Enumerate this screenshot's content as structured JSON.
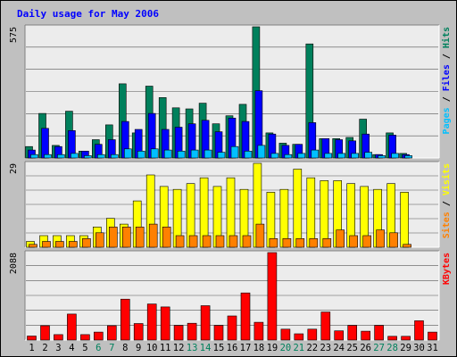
{
  "chart_data": {
    "type": "bar",
    "title": "Daily usage for May 2006",
    "x_labels": [
      "1",
      "2",
      "3",
      "4",
      "5",
      "6",
      "7",
      "8",
      "9",
      "10",
      "11",
      "12",
      "13",
      "14",
      "15",
      "16",
      "17",
      "18",
      "19",
      "20",
      "21",
      "22",
      "23",
      "24",
      "25",
      "26",
      "27",
      "28",
      "29",
      "30",
      "31"
    ],
    "weekend_days": [
      6,
      7,
      13,
      14,
      20,
      21,
      27,
      28
    ],
    "colors": {
      "background": "#c0c0c0",
      "plot": "#ececec",
      "grid": "#555555",
      "title": "#0000ff",
      "hits": "#00805c",
      "files": "#0000ff",
      "pages": "#00c0ff",
      "visits": "#ffff00",
      "sites": "#ff8000",
      "kbytes": "#ff0000",
      "weekend_label": "#00805c",
      "weekday_label": "#000000"
    },
    "panels": [
      {
        "name": "hits-files-pages",
        "max_label": "575",
        "ymax": 575,
        "right_labels": [
          {
            "text": "Pages",
            "color": "#00c0ff"
          },
          {
            "text": " / ",
            "color": "#000000"
          },
          {
            "text": "Files",
            "color": "#0000ff"
          },
          {
            "text": " / ",
            "color": "#000000"
          },
          {
            "text": "Hits",
            "color": "#00805c"
          }
        ],
        "series": [
          {
            "name": "Hits",
            "color": "#00805c",
            "values": [
              50,
              195,
              55,
              205,
              30,
              80,
              145,
              325,
              110,
              315,
              265,
              220,
              215,
              240,
              150,
              185,
              235,
              575,
              110,
              65,
              60,
              500,
              85,
              85,
              90,
              170,
              15,
              110,
              20,
              0,
              0
            ]
          },
          {
            "name": "Files",
            "color": "#0000ff",
            "values": [
              35,
              130,
              50,
              120,
              30,
              60,
              80,
              160,
              125,
              195,
              125,
              135,
              150,
              165,
              115,
              175,
              160,
              295,
              105,
              55,
              60,
              155,
              85,
              80,
              75,
              105,
              15,
              100,
              15,
              0,
              0
            ]
          },
          {
            "name": "Pages",
            "color": "#00c0ff",
            "values": [
              15,
              15,
              15,
              20,
              10,
              15,
              15,
              40,
              30,
              40,
              35,
              30,
              35,
              35,
              25,
              50,
              30,
              55,
              20,
              15,
              20,
              35,
              20,
              20,
              20,
              25,
              10,
              20,
              10,
              0,
              0
            ]
          }
        ]
      },
      {
        "name": "visits-sites",
        "max_label": "29",
        "ymax": 29,
        "right_labels": [
          {
            "text": "Sites",
            "color": "#ff8000"
          },
          {
            "text": " / ",
            "color": "#000000"
          },
          {
            "text": "Visits",
            "color": "#ffff00"
          }
        ],
        "series": [
          {
            "name": "Visits",
            "color": "#ffff00",
            "values": [
              2,
              4,
              4,
              4,
              4,
              7,
              10,
              8,
              16,
              25,
              21,
              20,
              22,
              24,
              21,
              24,
              20,
              29,
              19,
              20,
              27,
              24,
              23,
              23,
              22,
              21,
              20,
              22,
              19,
              0,
              0
            ]
          },
          {
            "name": "Sites",
            "color": "#ff8000",
            "values": [
              1,
              2,
              2,
              2,
              3,
              5,
              7,
              7,
              7,
              8,
              7,
              4,
              4,
              4,
              4,
              4,
              4,
              8,
              3,
              3,
              3,
              3,
              3,
              6,
              4,
              4,
              6,
              5,
              1,
              0,
              0
            ]
          }
        ]
      },
      {
        "name": "kbytes",
        "max_label": "2088",
        "ymax": 2088,
        "right_labels": [
          {
            "text": "KBytes",
            "color": "#ff0000"
          }
        ],
        "series": [
          {
            "name": "KBytes",
            "color": "#ff0000",
            "values": [
              95,
              340,
              130,
              620,
              130,
              190,
              340,
              975,
              395,
              860,
              790,
              350,
              400,
              820,
              350,
              575,
              1125,
              425,
              2088,
              260,
              150,
              260,
              670,
              220,
              350,
              210,
              350,
              90,
              90,
              460,
              190
            ]
          }
        ]
      }
    ]
  }
}
